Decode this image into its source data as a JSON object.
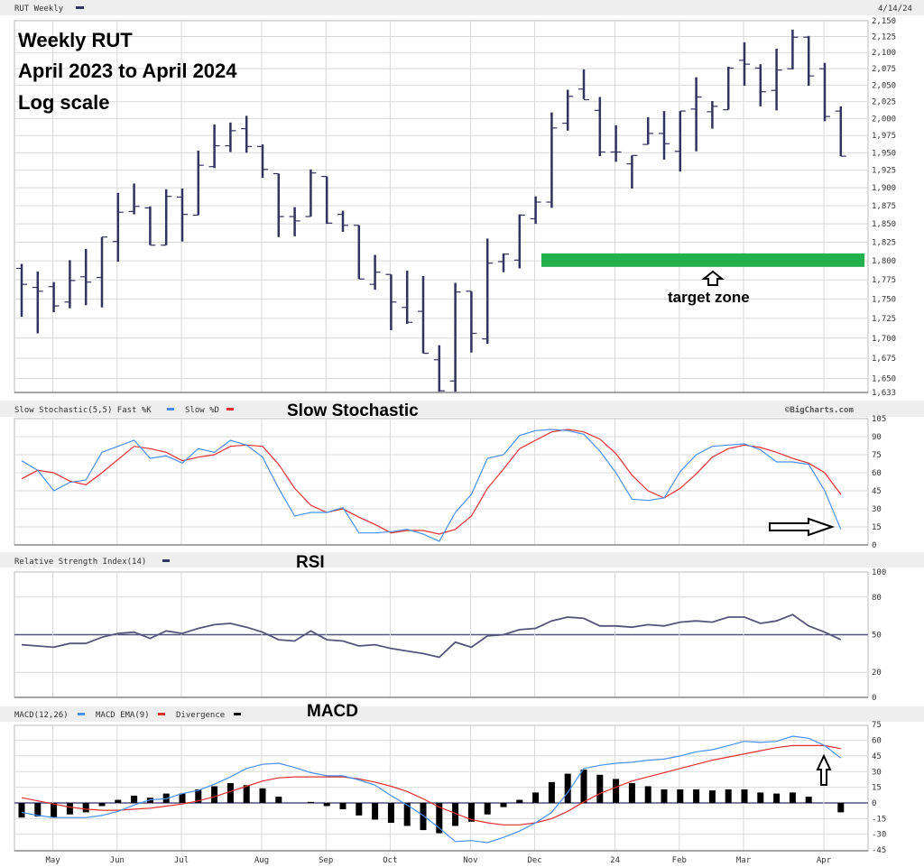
{
  "header": {
    "symbol_label": "RUT Weekly",
    "date": "4/14/24",
    "copyright": "©BigCharts.com"
  },
  "annotations": {
    "title_lines": [
      "Weekly RUT",
      "April 2023 to April 2024",
      "Log scale"
    ],
    "target_label": "target zone",
    "stoch_title": "Slow Stochastic",
    "rsi_title": "RSI",
    "macd_title": "MACD"
  },
  "legends": {
    "stoch": [
      "Slow Stochastic(5,5) Fast %K",
      "Slow %D"
    ],
    "rsi": [
      "Relative Strength Index(14)"
    ],
    "macd": [
      "MACD(12,26)",
      "MACD EMA(9)",
      "Divergence"
    ]
  },
  "colors": {
    "bar": "#33335f",
    "fastK": "#4a90f0",
    "slowD": "#e03030",
    "rsi": "#55557a",
    "target": "#22b14c",
    "hist": "#000000",
    "grid": "#d8d8d8"
  },
  "chart_data": [
    {
      "type": "ohlc",
      "title": "RUT Weekly",
      "scale": "log",
      "ylim": [
        1633,
        2150
      ],
      "y_ticks": [
        2150,
        2125,
        2100,
        2075,
        2050,
        2025,
        2000,
        1975,
        1950,
        1925,
        1900,
        1875,
        1850,
        1825,
        1800,
        1775,
        1750,
        1725,
        1700,
        1675,
        1650,
        1633
      ],
      "x_ticks": [
        {
          "label": "May",
          "week": 2
        },
        {
          "label": "Jun",
          "week": 6
        },
        {
          "label": "Jul",
          "week": 10
        },
        {
          "label": "Aug",
          "week": 15
        },
        {
          "label": "Sep",
          "week": 19
        },
        {
          "label": "Oct",
          "week": 23
        },
        {
          "label": "Nov",
          "week": 28
        },
        {
          "label": "Dec",
          "week": 32
        },
        {
          "label": "24",
          "week": 37
        },
        {
          "label": "Feb",
          "week": 41
        },
        {
          "label": "Mar",
          "week": 45
        },
        {
          "label": "Apr",
          "week": 50
        }
      ],
      "target_zone": [
        1792,
        1810
      ],
      "ohlc": [
        [
          1790,
          1796,
          1727,
          1769
        ],
        [
          1765,
          1786,
          1706,
          1760
        ],
        [
          1766,
          1772,
          1733,
          1741
        ],
        [
          1746,
          1801,
          1738,
          1774
        ],
        [
          1779,
          1816,
          1742,
          1772
        ],
        [
          1778,
          1832,
          1739,
          1832
        ],
        [
          1826,
          1893,
          1799,
          1866
        ],
        [
          1867,
          1906,
          1863,
          1874
        ],
        [
          1872,
          1874,
          1821,
          1821
        ],
        [
          1821,
          1898,
          1821,
          1888
        ],
        [
          1887,
          1899,
          1826,
          1863
        ],
        [
          1862,
          1953,
          1862,
          1932
        ],
        [
          1930,
          1991,
          1928,
          1960
        ],
        [
          1960,
          1994,
          1951,
          1982
        ],
        [
          1985,
          2004,
          1950,
          1959
        ],
        [
          1959,
          1962,
          1914,
          1926
        ],
        [
          1920,
          1920,
          1832,
          1860
        ],
        [
          1860,
          1873,
          1833,
          1854
        ],
        [
          1860,
          1926,
          1860,
          1921
        ],
        [
          1916,
          1916,
          1850,
          1851
        ],
        [
          1863,
          1868,
          1839,
          1848
        ],
        [
          1848,
          1848,
          1776,
          1776
        ],
        [
          1769,
          1808,
          1762,
          1785
        ],
        [
          1782,
          1782,
          1710,
          1746
        ],
        [
          1739,
          1787,
          1718,
          1720
        ],
        [
          1734,
          1780,
          1681,
          1681
        ],
        [
          1673,
          1691,
          1634,
          1635
        ],
        [
          1647,
          1771,
          1634,
          1759
        ],
        [
          1760,
          1760,
          1682,
          1706
        ],
        [
          1699,
          1830,
          1693,
          1797
        ],
        [
          1799,
          1810,
          1785,
          1809
        ],
        [
          1801,
          1863,
          1790,
          1862
        ],
        [
          1857,
          1888,
          1850,
          1880
        ],
        [
          1880,
          2009,
          1872,
          1986
        ],
        [
          1993,
          2043,
          1982,
          2033
        ],
        [
          2044,
          2074,
          2029,
          2028
        ],
        [
          2012,
          2032,
          1945,
          1951
        ],
        [
          1951,
          1990,
          1937,
          1951
        ],
        [
          1934,
          1946,
          1899,
          1946
        ],
        [
          1962,
          2002,
          1962,
          1978
        ],
        [
          1978,
          2011,
          1940,
          1963
        ],
        [
          1952,
          2011,
          1923,
          2011
        ],
        [
          2014,
          2062,
          1952,
          2032
        ],
        [
          2010,
          2026,
          1985,
          2018
        ],
        [
          2013,
          2078,
          2013,
          2076
        ],
        [
          2088,
          2116,
          2049,
          2082
        ],
        [
          2076,
          2082,
          2018,
          2040
        ],
        [
          2042,
          2106,
          2012,
          2073
        ],
        [
          2075,
          2136,
          2074,
          2124
        ],
        [
          2124,
          2126,
          2049,
          2064
        ],
        [
          2075,
          2084,
          1996,
          2003
        ],
        [
          2011,
          2018,
          1945,
          1945
        ]
      ]
    },
    {
      "type": "line",
      "title": "Slow Stochastic(5,5)",
      "ylim": [
        0,
        105
      ],
      "y_ticks": [
        105,
        90,
        75,
        60,
        45,
        30,
        15,
        0
      ],
      "series": [
        {
          "name": "Fast %K",
          "values": [
            70,
            62,
            45,
            52,
            54,
            77,
            82,
            87,
            72,
            74,
            68,
            80,
            77,
            87,
            83,
            73,
            47,
            24,
            27,
            27,
            31,
            10,
            10,
            11,
            13,
            9,
            3,
            27,
            42,
            72,
            75,
            91,
            95,
            96,
            95,
            92,
            78,
            60,
            38,
            37,
            39,
            61,
            75,
            82,
            83,
            84,
            79,
            69,
            69,
            67,
            45,
            13
          ]
        },
        {
          "name": "Slow %D",
          "values": [
            55,
            62,
            60,
            53,
            50,
            60,
            71,
            82,
            80,
            77,
            70,
            73,
            75,
            82,
            83,
            82,
            67,
            47,
            33,
            27,
            30,
            23,
            17,
            10,
            12,
            12,
            9,
            13,
            24,
            47,
            63,
            80,
            87,
            94,
            96,
            94,
            88,
            76,
            58,
            45,
            39,
            47,
            59,
            73,
            80,
            83,
            81,
            77,
            72,
            68,
            60,
            42
          ]
        }
      ]
    },
    {
      "type": "line",
      "title": "Relative Strength Index(14)",
      "ylim": [
        0,
        100
      ],
      "y_ticks": [
        100,
        80,
        50,
        20,
        0
      ],
      "series": [
        {
          "name": "RSI",
          "values": [
            42,
            41,
            40,
            43,
            43,
            48,
            51,
            52,
            47,
            53,
            51,
            55,
            58,
            59,
            56,
            52,
            46,
            45,
            53,
            46,
            45,
            41,
            42,
            39,
            37,
            35,
            32,
            44,
            40,
            49,
            50,
            54,
            55,
            61,
            64,
            63,
            57,
            57,
            56,
            58,
            57,
            60,
            61,
            60,
            64,
            64,
            59,
            61,
            66,
            57,
            52,
            46
          ]
        }
      ]
    },
    {
      "type": "bar+line",
      "title": "MACD(12,26)",
      "ylim": [
        -45,
        75
      ],
      "y_ticks": [
        75,
        60,
        45,
        30,
        15,
        0,
        -15,
        -30,
        -45
      ],
      "series": [
        {
          "name": "MACD",
          "values": [
            -9,
            -12,
            -14,
            -14,
            -14,
            -12,
            -8,
            -2,
            3,
            4,
            9,
            12,
            18,
            25,
            33,
            37,
            38,
            34,
            29,
            26,
            26,
            22,
            17,
            7,
            -2,
            -12,
            -24,
            -37,
            -36,
            -38,
            -33,
            -27,
            -19,
            -9,
            10,
            33,
            36,
            38,
            39,
            41,
            42,
            45,
            49,
            51,
            55,
            59,
            58,
            59,
            64,
            62,
            55,
            43
          ]
        },
        {
          "name": "MACD EMA(9)",
          "values": [
            5,
            2,
            -1,
            -4,
            -6,
            -7,
            -7,
            -6,
            -5,
            -3,
            -1,
            2,
            6,
            11,
            16,
            21,
            24,
            25,
            25,
            25,
            25,
            23,
            20,
            16,
            11,
            4,
            -4,
            -10,
            -16,
            -19,
            -21,
            -21,
            -19,
            -15,
            -8,
            1,
            9,
            15,
            21,
            25,
            29,
            33,
            37,
            41,
            44,
            47,
            50,
            53,
            55,
            55,
            55,
            52
          ]
        },
        {
          "name": "Divergence",
          "values": [
            -14,
            -13,
            -14,
            -11,
            -9,
            -3,
            3,
            7,
            5,
            9,
            9,
            13,
            16,
            19,
            17,
            14,
            6,
            0,
            1,
            -3,
            -6,
            -12,
            -16,
            -19,
            -22,
            -26,
            -29,
            -22,
            -18,
            -11,
            -4,
            3,
            10,
            20,
            28,
            32,
            27,
            23,
            19,
            16,
            13,
            13,
            13,
            12,
            13,
            13,
            10,
            9,
            10,
            6,
            0,
            -9
          ]
        }
      ]
    }
  ]
}
